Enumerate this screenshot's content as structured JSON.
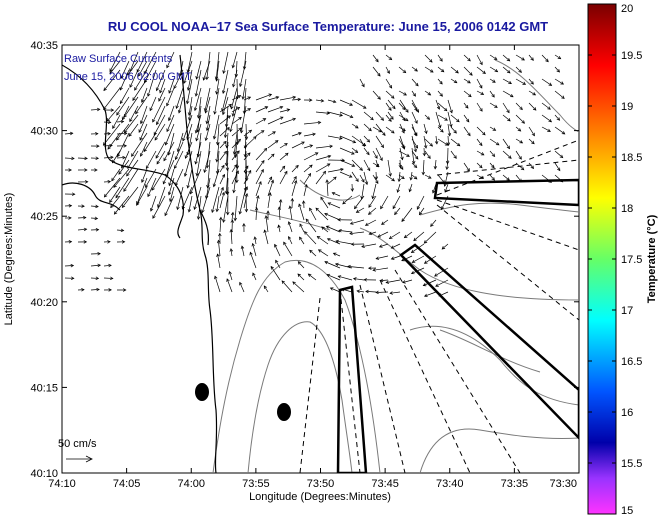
{
  "title": "RU COOL  NOAA–17  Sea Surface Temperature:  June 15, 2006 0142 GMT",
  "annotation": {
    "line1": "Raw Surface Currents",
    "line2": "June 15, 2006 02:00 GMT"
  },
  "scale_label": "50 cm/s",
  "colors": {
    "title": "#1a1aa0",
    "background": "#ffffff",
    "coastline": "#000000",
    "bathymetry": "#7a7a7a"
  },
  "chart_data": {
    "type": "map",
    "xlabel": "Longitude (Degrees:Minutes)",
    "ylabel": "Latitude (Degrees:Minutes)",
    "xlim_degmin": [
      "74:10",
      "73:30"
    ],
    "ylim_degmin": [
      "40:10",
      "40:35"
    ],
    "x_ticks": [
      "74:10",
      "74:05",
      "74:00",
      "73:55",
      "73:50",
      "73:45",
      "73:40",
      "73:35",
      "73:30"
    ],
    "y_ticks": [
      "40:35",
      "40:30",
      "40:25",
      "40:20",
      "40:15",
      "40:10"
    ],
    "colorbar": {
      "label": "Temperature (°C)",
      "range": [
        15,
        20
      ],
      "ticks": [
        "20",
        "19.5",
        "19",
        "18.5",
        "18",
        "17.5",
        "17",
        "16.5",
        "16",
        "15.5",
        "15"
      ]
    },
    "markers": [
      {
        "lon": -74.0,
        "lat": 40.245
      },
      {
        "lon": -73.9,
        "lat": 40.235
      }
    ]
  }
}
